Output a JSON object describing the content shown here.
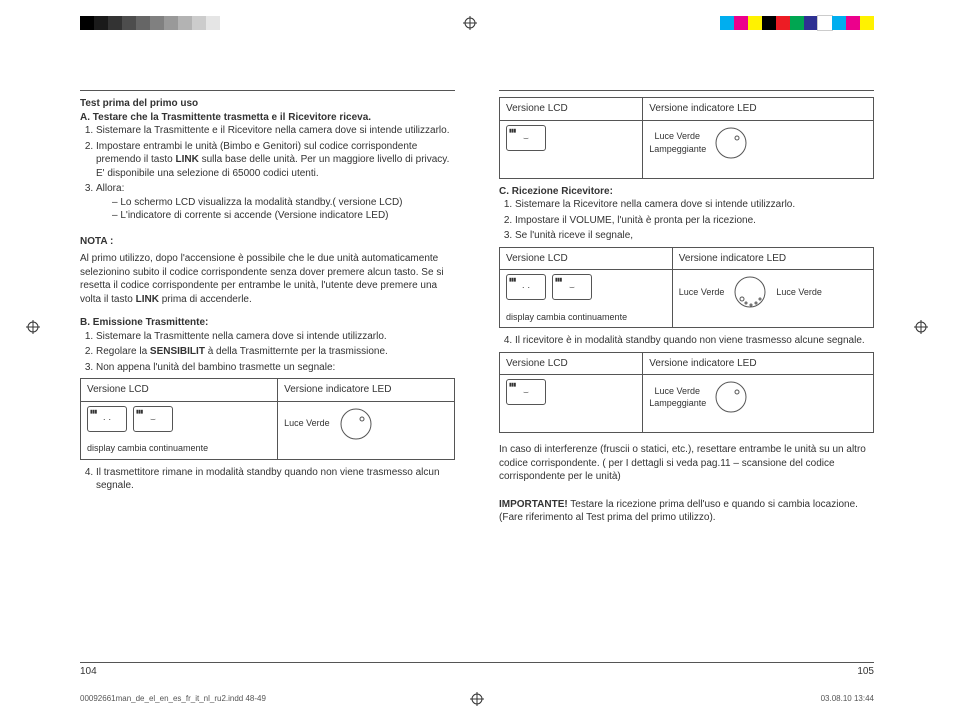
{
  "color_bar": {
    "left_swatches": [
      "#000000",
      "#1a1a1a",
      "#333333",
      "#4d4d4d",
      "#666666",
      "#808080",
      "#999999",
      "#b3b3b3",
      "#cccccc",
      "#e5e5e5"
    ],
    "right_swatches": [
      "#00aeef",
      "#ec008c",
      "#fff200",
      "#000000",
      "#ed1c24",
      "#00a651",
      "#2e3192",
      "#ffffff",
      "#00aeef",
      "#ec008c",
      "#fff200"
    ]
  },
  "left_col": {
    "h1": "Test prima del primo uso",
    "h2": "A. Testare che la Trasmittente trasmetta e il Ricevitore riceva.",
    "items": [
      "Sistemare la Trasmittente e il Ricevitore nella camera dove si intende utilizzarlo.",
      "Impostare entrambi le unità (Bimbo e Genitori) sul codice corrispondente premendo il tasto LINK sulla base delle unità. Per un maggiore livello di privacy. E' disponibile una selezione di 65000 codici utenti.",
      "Allora:"
    ],
    "dashes": [
      "Lo schermo LCD visualizza la modalità standby.( versione LCD)",
      "L'indicatore di corrente si accende (Versione indicatore LED)"
    ],
    "nota_title": "NOTA :",
    "nota_body": "Al primo utilizzo, dopo l'accensione è possibile che le due unità automaticamente selezionino subito il codice corrispondente senza dover premere alcun tasto. Se si resetta il codice corrispondente per entrambe le unità, l'utente deve premere una volta il tasto LINK prima di accenderle.",
    "b_title": "B. Emissione Trasmittente:",
    "b_items": [
      "Sistemare la Trasmittente nella camera dove si intende utilizzarlo.",
      "Regolare la SENSIBILIT à della Trasmitternte per la trasmissione.",
      "Non appena l'unità del bambino trasmette un segnale:"
    ],
    "table_headers": [
      "Versione LCD",
      "Versione indicatore LED"
    ],
    "table_caption": "display cambia continuamente",
    "table_led_label": "Luce Verde",
    "item4": "Il trasmettitore rimane in modalità standby quando non viene trasmesso alcun segnale.",
    "page": "104"
  },
  "right_col": {
    "table_headers": [
      "Versione LCD",
      "Versione indicatore LED"
    ],
    "t1_led_label": "Luce Verde Lampeggiante",
    "c_title": "C. Ricezione Ricevitore:",
    "c_items": [
      "Sistemare la Ricevitore nella camera dove si intende utilizzarlo.",
      "Impostare il VOLUME, l'unità è pronta per la ricezione.",
      "Se l'unità riceve il segnale,"
    ],
    "t2_caption": "display cambia continuamente",
    "t2_led_label_left": "Luce Verde",
    "t2_led_label_right": "Luce Verde",
    "item4": "Il ricevitore è in modalità standby quando non viene trasmesso alcune segnale.",
    "t3_led_label": "Luce Verde Lampeggiante",
    "interference": "In caso di interferenze (fruscii o statici, etc.), resettare entrambe le unità su un altro codice corrispondente. ( per I dettagli si veda pag.11 – scansione del codice corrispondente per le unità)",
    "importante_label": "IMPORTANTE!",
    "importante_body": "  Testare la ricezione prima dell'uso e quando si cambia locazione. (Fare riferimento al Test prima del primo utilizzo).",
    "page": "105"
  },
  "print_info": {
    "file": "00092661man_de_el_en_es_fr_it_nl_ru2.indd   48-49",
    "date": "03.08.10   13:44"
  },
  "dial_svg_color": "#555555",
  "lcd_face_neutral": "· ·",
  "lcd_face_smile": "⌣"
}
